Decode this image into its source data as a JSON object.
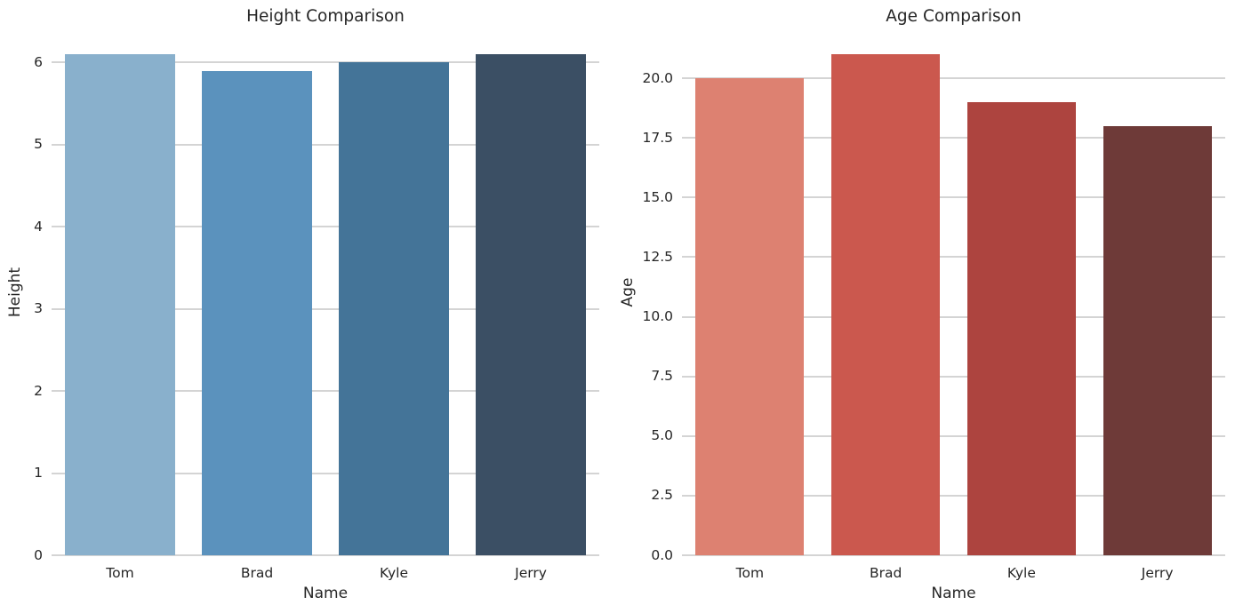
{
  "figure": {
    "background_color": "#ffffff",
    "grid_color": "#d4d4d4",
    "text_color": "#262626"
  },
  "chart_data": [
    {
      "type": "bar",
      "title": "Height Comparison",
      "xlabel": "Name",
      "ylabel": "Height",
      "categories": [
        "Tom",
        "Brad",
        "Kyle",
        "Jerry"
      ],
      "values": [
        6.1,
        5.9,
        6.0,
        6.1
      ],
      "bar_colors": [
        "#89B0CC",
        "#5B92BD",
        "#447498",
        "#3B4F64"
      ],
      "yticks": [
        0,
        1,
        2,
        3,
        4,
        5,
        6
      ],
      "ytick_labels": [
        "0",
        "1",
        "2",
        "3",
        "4",
        "5",
        "6"
      ],
      "ylim": [
        0,
        6.405
      ],
      "bar_width_ratio": 0.8,
      "grid": true,
      "legend": "none"
    },
    {
      "type": "bar",
      "title": "Age Comparison",
      "xlabel": "Name",
      "ylabel": "Age",
      "categories": [
        "Tom",
        "Brad",
        "Kyle",
        "Jerry"
      ],
      "values": [
        20,
        21,
        19,
        18
      ],
      "bar_colors": [
        "#DD8171",
        "#CB584E",
        "#AD443F",
        "#6E3A38"
      ],
      "yticks": [
        0,
        2.5,
        5,
        7.5,
        10,
        12.5,
        15,
        17.5,
        20
      ],
      "ytick_labels": [
        "0.0",
        "2.5",
        "5.0",
        "7.5",
        "10.0",
        "12.5",
        "15.0",
        "17.5",
        "20.0"
      ],
      "ylim": [
        0,
        22.05
      ],
      "bar_width_ratio": 0.8,
      "grid": true,
      "legend": "none"
    }
  ]
}
